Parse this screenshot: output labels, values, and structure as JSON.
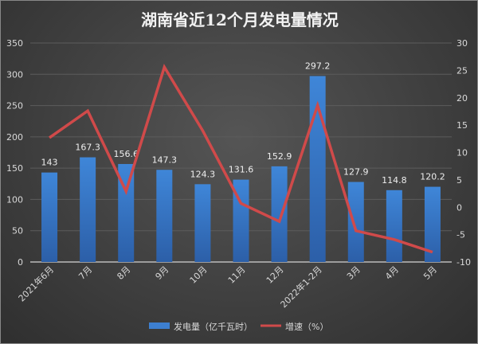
{
  "chart_data": {
    "type": "bar+line",
    "title": "湖南省近12个月发电量情况",
    "categories": [
      "2021年6月",
      "7月",
      "8月",
      "9月",
      "10月",
      "11月",
      "12月",
      "2022年1-2月",
      "3月",
      "4月",
      "5月"
    ],
    "series": [
      {
        "name": "发电量（亿千瓦时）",
        "type": "bar",
        "axis": "left",
        "color": "#3d7fd0",
        "values": [
          143,
          167.3,
          156.6,
          147.3,
          124.3,
          131.6,
          152.9,
          297.2,
          127.9,
          114.8,
          120.2
        ],
        "data_labels": [
          "143",
          "167.3",
          "156.6",
          "147.3",
          "124.3",
          "131.6",
          "152.9",
          "297.2",
          "127.9",
          "114.8",
          "120.2"
        ]
      },
      {
        "name": "增速（%）",
        "type": "line",
        "axis": "right",
        "color": "#d04a4a",
        "values": [
          12.7,
          17.6,
          2.9,
          25.6,
          14,
          0.7,
          -2.6,
          18.6,
          -4.3,
          -5.9,
          -8.2
        ]
      }
    ],
    "y_left": {
      "min": 0,
      "max": 350,
      "ticks": [
        "0",
        "50",
        "100",
        "150",
        "200",
        "250",
        "300",
        "350"
      ]
    },
    "y_right": {
      "min": -10,
      "max": 30,
      "ticks": [
        "-10",
        "-5",
        "0",
        "5",
        "10",
        "15",
        "20",
        "25",
        "30"
      ]
    },
    "grid": true,
    "legend": "bottom"
  }
}
